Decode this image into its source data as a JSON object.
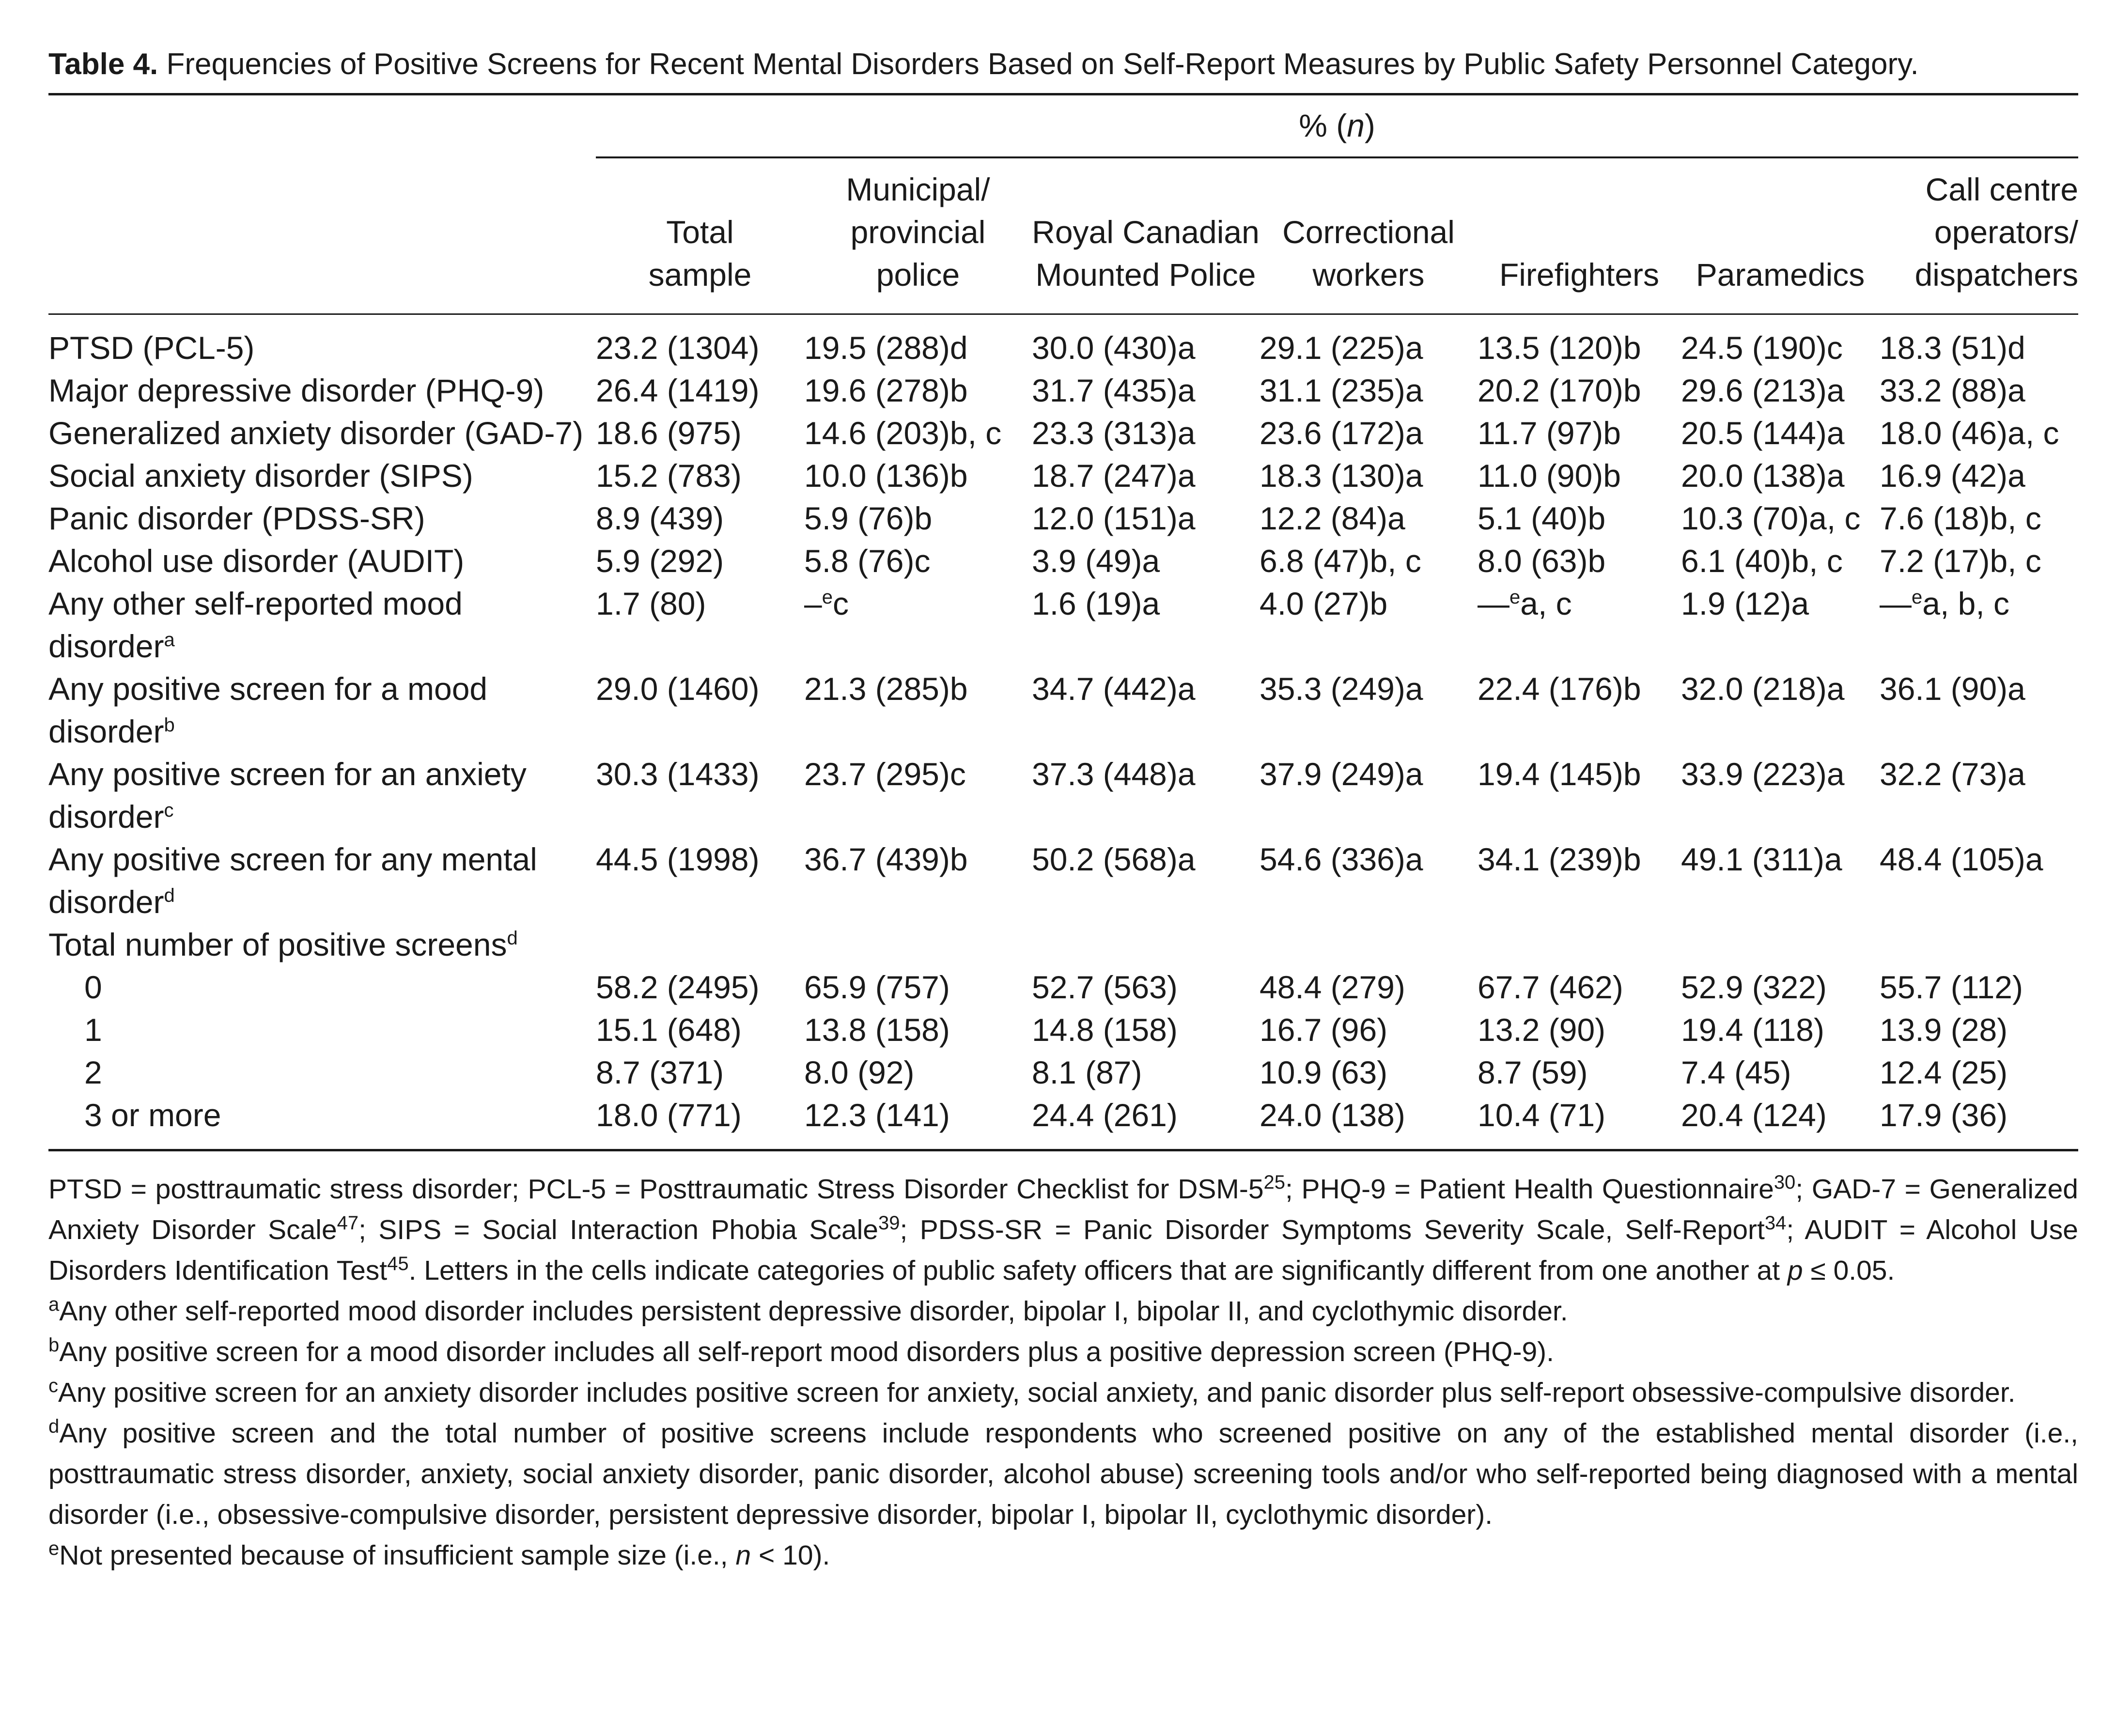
{
  "title": {
    "label": "Table 4.",
    "text": "Frequencies of Positive Screens for Recent Mental Disorders Based on Self-Report Measures by Public Safety Personnel Category."
  },
  "spanning_header": {
    "prefix": "% (",
    "n": "n",
    "suffix": ")"
  },
  "columns": [
    {
      "label_lines": [
        "Total",
        "sample"
      ]
    },
    {
      "label_lines": [
        "Municipal/",
        "provincial",
        "police"
      ]
    },
    {
      "label_lines": [
        "Royal Canadian",
        "Mounted Police"
      ]
    },
    {
      "label_lines": [
        "Correctional",
        "workers"
      ]
    },
    {
      "label_lines": [
        "Firefighters"
      ]
    },
    {
      "label_lines": [
        "Paramedics"
      ]
    },
    {
      "label_lines": [
        "Call centre",
        "operators/",
        "dispatchers"
      ]
    }
  ],
  "rows": [
    {
      "label": "PTSD (PCL-5)",
      "sup": "",
      "cells": [
        "23.2 (1304)",
        "19.5 (288)d",
        "30.0 (430)a",
        "29.1 (225)a",
        "13.5 (120)b",
        "24.5 (190)c",
        "18.3 (51)d"
      ]
    },
    {
      "label": "Major depressive disorder (PHQ-9)",
      "sup": "",
      "cells": [
        "26.4 (1419)",
        "19.6 (278)b",
        "31.7 (435)a",
        "31.1 (235)a",
        "20.2 (170)b",
        "29.6 (213)a",
        "33.2 (88)a"
      ]
    },
    {
      "label": "Generalized anxiety disorder (GAD-7)",
      "sup": "",
      "cells": [
        "18.6 (975)",
        "14.6 (203)b, c",
        "23.3 (313)a",
        "23.6 (172)a",
        "11.7 (97)b",
        "20.5 (144)a",
        "18.0 (46)a, c"
      ]
    },
    {
      "label": "Social anxiety disorder (SIPS)",
      "sup": "",
      "cells": [
        "15.2 (783)",
        "10.0 (136)b",
        "18.7 (247)a",
        "18.3 (130)a",
        "11.0 (90)b",
        "20.0 (138)a",
        "16.9 (42)a"
      ]
    },
    {
      "label": "Panic disorder (PDSS-SR)",
      "sup": "",
      "cells": [
        "8.9 (439)",
        "5.9 (76)b",
        "12.0 (151)a",
        "12.2 (84)a",
        "5.1 (40)b",
        "10.3 (70)a, c",
        "7.6 (18)b, c"
      ]
    },
    {
      "label": "Alcohol use disorder (AUDIT)",
      "sup": "",
      "cells": [
        "5.9 (292)",
        "5.8 (76)c",
        "3.9 (49)a",
        "6.8 (47)b, c",
        "8.0 (63)b",
        "6.1 (40)b, c",
        "7.2 (17)b, c"
      ]
    },
    {
      "label": "Any other self-reported mood disorder",
      "sup": "a",
      "cells": [
        "1.7 (80)",
        "–ec",
        "1.6 (19)a",
        "4.0 (27)b",
        "—ea, c",
        "1.9 (12)a",
        "—ea, b, c"
      ]
    },
    {
      "label": "Any positive screen for a mood disorder",
      "sup": "b",
      "cells": [
        "29.0 (1460)",
        "21.3 (285)b",
        "34.7 (442)a",
        "35.3 (249)a",
        "22.4 (176)b",
        "32.0 (218)a",
        "36.1 (90)a"
      ]
    },
    {
      "label": "Any positive screen for an anxiety disorder",
      "sup": "c",
      "cells": [
        "30.3 (1433)",
        "23.7 (295)c",
        "37.3 (448)a",
        "37.9 (249)a",
        "19.4 (145)b",
        "33.9 (223)a",
        "32.2 (73)a"
      ]
    },
    {
      "label": "Any positive screen for any mental disorder",
      "sup": "d",
      "cells": [
        "44.5 (1998)",
        "36.7 (439)b",
        "50.2 (568)a",
        "54.6 (336)a",
        "34.1 (239)b",
        "49.1 (311)a",
        "48.4 (105)a"
      ]
    },
    {
      "label": "Total number of positive screens",
      "sup": "d",
      "cells": [
        "",
        "",
        "",
        "",
        "",
        "",
        ""
      ]
    },
    {
      "label": "0",
      "sup": "",
      "indent": true,
      "cells": [
        "58.2 (2495)",
        "65.9 (757)",
        "52.7 (563)",
        "48.4 (279)",
        "67.7 (462)",
        "52.9 (322)",
        "55.7 (112)"
      ]
    },
    {
      "label": "1",
      "sup": "",
      "indent": true,
      "cells": [
        "15.1 (648)",
        "13.8 (158)",
        "14.8 (158)",
        "16.7 (96)",
        "13.2 (90)",
        "19.4 (118)",
        "13.9 (28)"
      ]
    },
    {
      "label": "2",
      "sup": "",
      "indent": true,
      "cells": [
        "8.7 (371)",
        "8.0 (92)",
        "8.1 (87)",
        "10.9 (63)",
        "8.7 (59)",
        "7.4 (45)",
        "12.4 (25)"
      ]
    },
    {
      "label": "3 or more",
      "sup": "",
      "indent": true,
      "cells": [
        "18.0 (771)",
        "12.3 (141)",
        "24.4 (261)",
        "24.0 (138)",
        "10.4 (71)",
        "20.4 (124)",
        "17.9 (36)"
      ]
    }
  ],
  "notes": {
    "abbrev": [
      {
        "text": "PTSD = posttraumatic stress disorder; PCL-5 = Posttraumatic Stress Disorder Checklist for DSM-5",
        "sup": "25"
      },
      {
        "text": "; PHQ-9 = Patient Health Questionnaire",
        "sup": "30"
      },
      {
        "text": "; GAD-7 = Generalized Anxiety Disorder Scale",
        "sup": "47"
      },
      {
        "text": "; SIPS = Social Interaction Phobia Scale",
        "sup": "39"
      },
      {
        "text": "; PDSS-SR = Panic Disorder Symptoms Severity Scale, Self-Report",
        "sup": "34"
      },
      {
        "text": "; AUDIT = Alcohol Use Disorders Identification Test",
        "sup": "45"
      },
      {
        "text": ". Letters in the cells indicate categories of public safety officers that are significantly different from one another at ",
        "sup": ""
      }
    ],
    "p_italic": "p",
    "p_tail": " ≤ 0.05.",
    "footnotes": [
      {
        "mark": "a",
        "text": "Any other self-reported mood disorder includes persistent depressive disorder, bipolar I, bipolar II, and cyclothymic disorder."
      },
      {
        "mark": "b",
        "text": "Any positive screen for a mood disorder includes all self-report mood disorders plus a positive depression screen (PHQ-9)."
      },
      {
        "mark": "c",
        "text": "Any positive screen for an anxiety disorder includes positive screen for anxiety, social anxiety, and panic disorder plus self-report obsessive-compulsive disorder."
      },
      {
        "mark": "d",
        "text": "Any positive screen and the total number of positive screens include respondents who screened positive on any of the established mental disorder (i.e., posttraumatic stress disorder, anxiety, social anxiety disorder, panic disorder, alcohol abuse) screening tools and/or who self-reported being diagnosed with a mental disorder (i.e., obsessive-compulsive disorder, persistent depressive disorder, bipolar I, bipolar II, cyclothymic disorder)."
      }
    ],
    "footnote_e": {
      "mark": "e",
      "before": "Not presented because of insufficient sample size (i.e., ",
      "n": "n",
      "after": " < 10)."
    }
  }
}
